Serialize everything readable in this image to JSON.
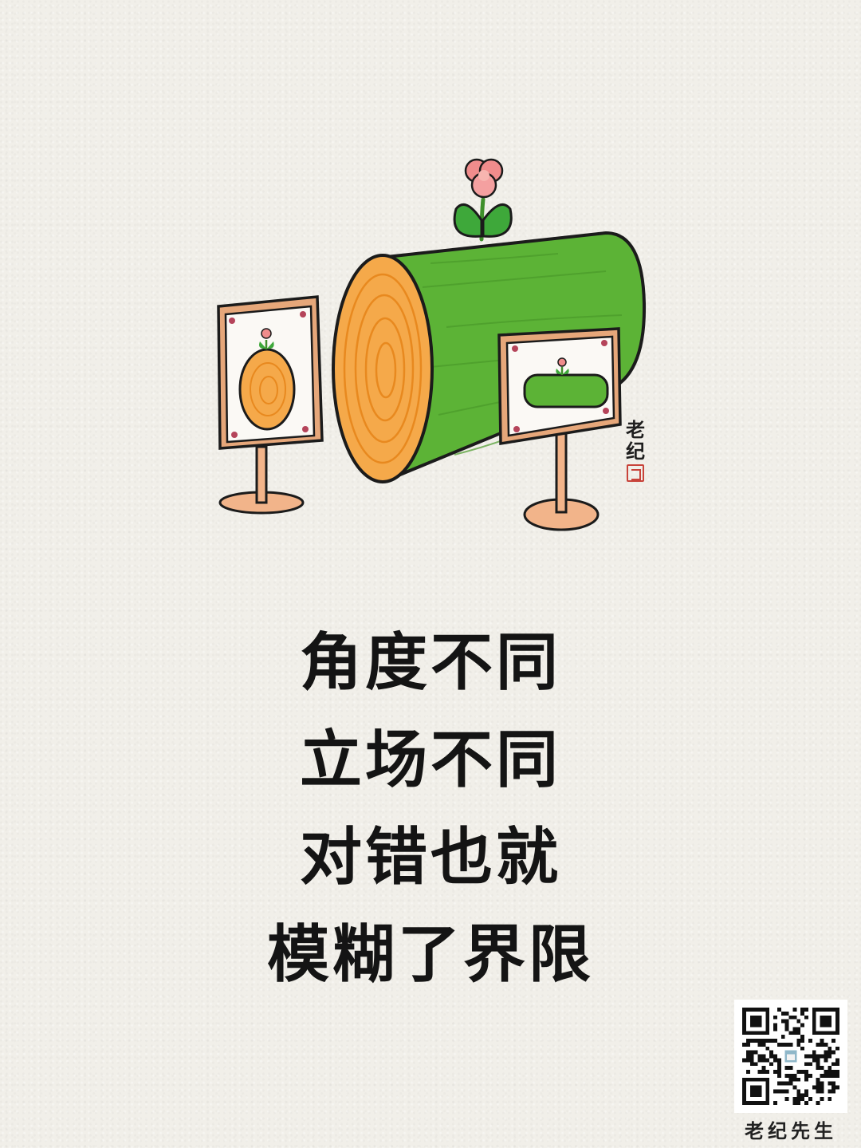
{
  "poem": {
    "lines": [
      "角度不同",
      "立场不同",
      "对错也就",
      "模糊了界限"
    ]
  },
  "signature": {
    "line1": "老",
    "line2": "纪"
  },
  "qr": {
    "caption": "老纪先生"
  },
  "colors": {
    "background": "#f1efe9",
    "log_bark": "#5cb336",
    "log_wood": "#f5a94a",
    "frame_wood": "#e6a77a",
    "flower": "#f08c8c",
    "leaf": "#3ea83a",
    "ink": "#141414",
    "seal": "#c8433a"
  },
  "icons": [
    "flower-icon",
    "seal-stamp-icon",
    "qr-code-icon"
  ]
}
